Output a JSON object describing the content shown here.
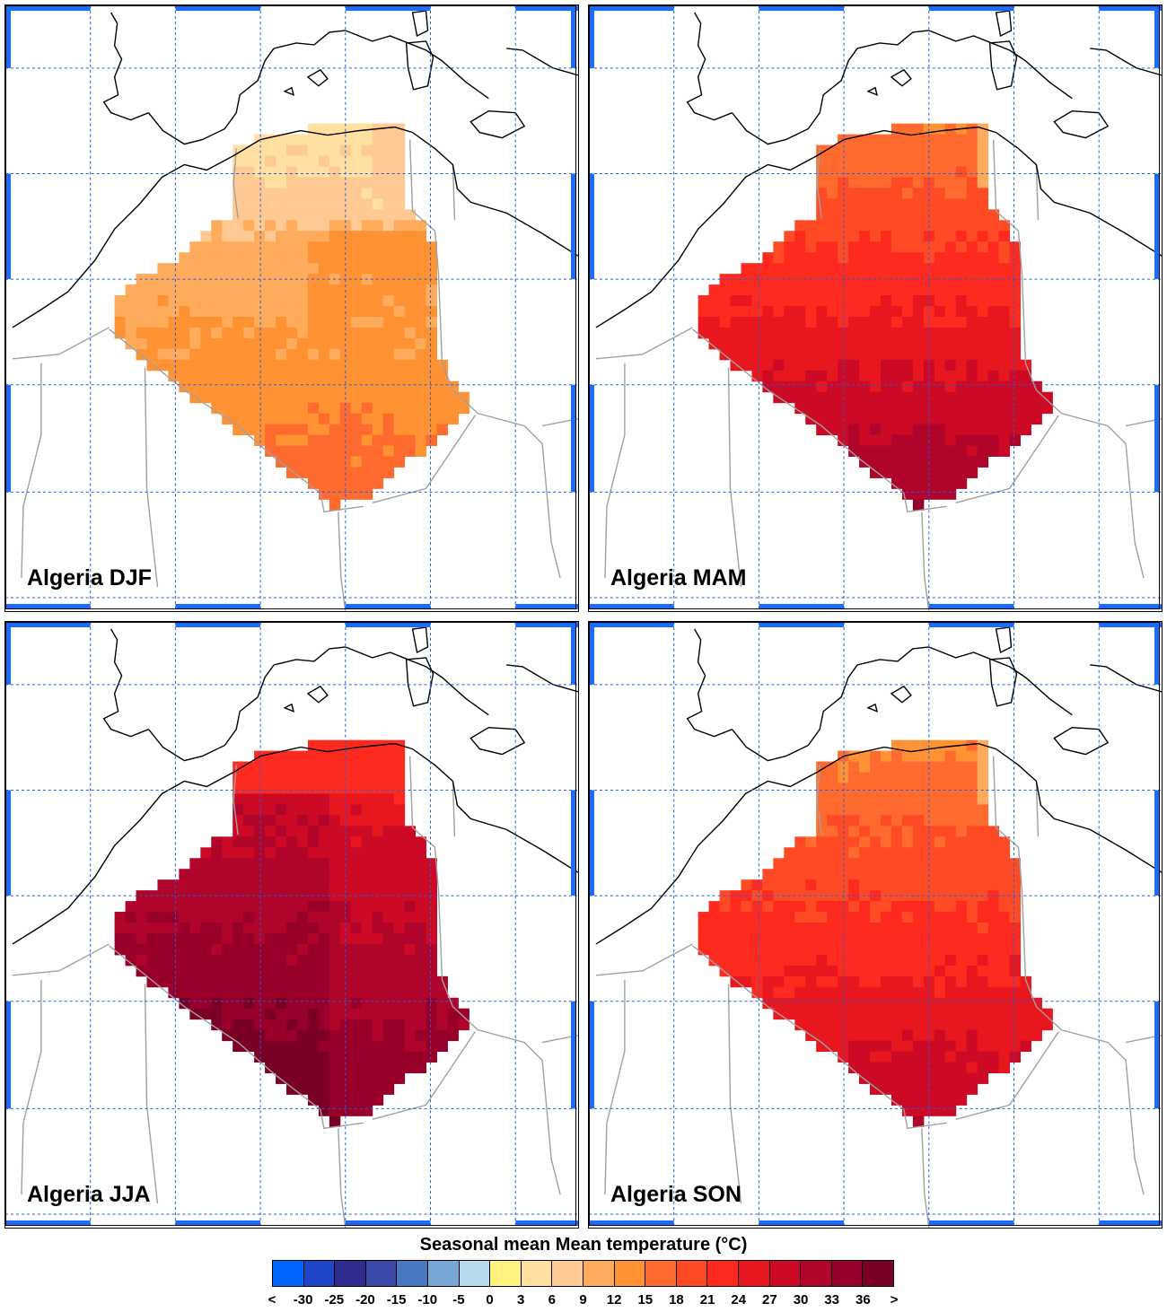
{
  "panels": [
    {
      "label": "Algeria DJF",
      "season": "DJF"
    },
    {
      "label": "Algeria MAM",
      "season": "MAM"
    },
    {
      "label": "Algeria JJA",
      "season": "JJA"
    },
    {
      "label": "Algeria SON",
      "season": "SON"
    }
  ],
  "legend": {
    "title": "Seasonal mean Mean temperature (°C)",
    "tick_labels": [
      "<",
      "-30",
      "-25",
      "-20",
      "-15",
      "-10",
      "-5",
      "0",
      "3",
      "6",
      "9",
      "12",
      "15",
      "18",
      "21",
      "24",
      "27",
      "30",
      "33",
      "36",
      ">"
    ],
    "colors": [
      "#0066ff",
      "#1f45c8",
      "#2e2d8f",
      "#3b4aa8",
      "#4a78c0",
      "#78a6d6",
      "#b7d9ec",
      "#fff37f",
      "#ffe0a0",
      "#ffc993",
      "#ffab5c",
      "#ff9233",
      "#ff6b2e",
      "#ff4b25",
      "#ff2a1f",
      "#e8161f",
      "#cc0a26",
      "#b0042a",
      "#98002a",
      "#7a0026"
    ]
  },
  "colors": {
    "grid": "#1f5fe0",
    "coast": "#000000",
    "border": "#a0a0a0",
    "frame_accent": "#1a6cff"
  }
}
